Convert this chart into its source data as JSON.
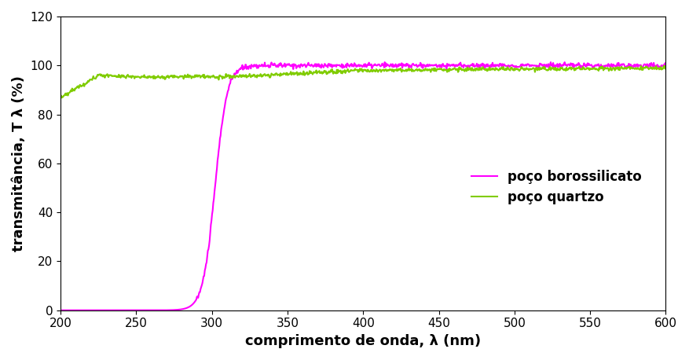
{
  "xlim": [
    200,
    600
  ],
  "ylim": [
    0,
    120
  ],
  "xticks": [
    200,
    250,
    300,
    350,
    400,
    450,
    500,
    550,
    600
  ],
  "yticks": [
    0,
    20,
    40,
    60,
    80,
    100,
    120
  ],
  "xlabel": "comprimento de onda, λ (nm)",
  "ylabel": "transmitância, T λ (%)",
  "legend_labels": [
    "poço borossilicato",
    "poço quartzo"
  ],
  "color_borossilicato": "#FF00FF",
  "color_quartzo": "#80CC00",
  "linewidth": 1.5,
  "legend_fontsize": 12,
  "axis_label_fontsize": 13,
  "tick_fontsize": 11
}
